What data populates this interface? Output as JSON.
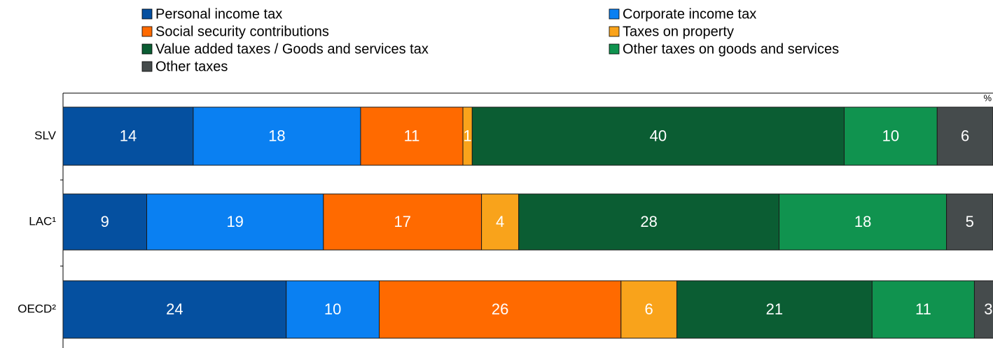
{
  "chart_data": {
    "type": "stacked-bar-horizontal",
    "unit": "%",
    "categories": [
      "SLV",
      "LAC¹",
      "OECD²"
    ],
    "xlim": [
      0,
      100
    ],
    "legend": "top",
    "series": [
      {
        "name": "Personal income tax",
        "color": "#0550a0",
        "values": [
          14,
          9,
          24
        ]
      },
      {
        "name": "Corporate income tax",
        "color": "#0a80f2",
        "values": [
          18,
          19,
          10
        ]
      },
      {
        "name": "Social security contributions",
        "color": "#ff6a00",
        "values": [
          11,
          17,
          26
        ]
      },
      {
        "name": "Taxes on property",
        "color": "#f9a31b",
        "values": [
          1,
          4,
          6
        ]
      },
      {
        "name": "Value added taxes / Goods and services tax",
        "color": "#0b5d33",
        "values": [
          40,
          28,
          21
        ]
      },
      {
        "name": "Other taxes on goods and services",
        "color": "#10934f",
        "values": [
          10,
          18,
          11
        ]
      },
      {
        "name": "Other taxes",
        "color": "#454b4c",
        "values": [
          6,
          5,
          3
        ]
      }
    ]
  }
}
